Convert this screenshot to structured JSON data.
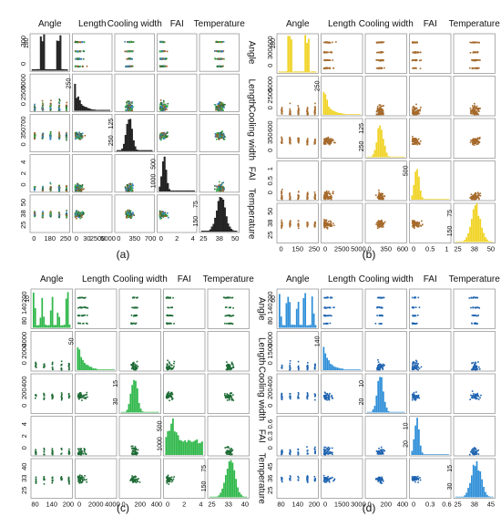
{
  "panels_caption": [
    "(a)",
    "(b)",
    "(c)",
    "(d)"
  ],
  "variables": [
    "Angle",
    "Length",
    "Cooling width",
    "FAI",
    "Temperature"
  ],
  "colors": {
    "a_series": [
      "#2d6b34",
      "#3b7fc0",
      "#39b34a",
      "#a0612b"
    ],
    "a_hist": "#2b2b2b",
    "b_scatter": "#a66a2c",
    "b_hist": "#f0d324",
    "c_scatter": "#1d6b35",
    "c_hist": "#2fb74a",
    "d_scatter": "#1f63b0",
    "d_hist": "#2f8fd8"
  },
  "chart_data": [
    {
      "type": "scatter",
      "panel": "(a)",
      "variables": [
        "Angle",
        "Length",
        "Cooling width",
        "FAI",
        "Temperature"
      ],
      "diagonal": "histogram",
      "x_tick_labels": [
        [
          "0",
          "180",
          "250"
        ],
        [
          "0",
          "30",
          "2500",
          "5000"
        ],
        [
          "0",
          "350",
          "700"
        ],
        [
          "0",
          "2",
          "4"
        ],
        [
          "25",
          "38",
          "50"
        ]
      ],
      "y_tick_labels": [
        [
          "0",
          "300"
        ],
        [
          "0",
          "2500",
          "5000"
        ],
        [
          "0",
          "350",
          "700"
        ],
        [
          "0",
          "2",
          "4"
        ],
        [
          "25",
          "38",
          "50"
        ]
      ],
      "diag_tick_labels": [
        [
          "180"
        ],
        [
          "250"
        ],
        [
          "125",
          "250"
        ],
        [
          "500",
          "1000"
        ],
        [
          "75",
          "150"
        ]
      ],
      "ranges": [
        [
          0,
          300
        ],
        [
          0,
          5000
        ],
        [
          0,
          700
        ],
        [
          0,
          4
        ],
        [
          25,
          50
        ]
      ]
    },
    {
      "type": "scatter",
      "panel": "(b)",
      "variables": [
        "Angle",
        "Length",
        "Cooling width",
        "FAI",
        "Temperature"
      ],
      "diagonal": "histogram",
      "x_tick_labels": [
        [
          "0",
          "150",
          "250"
        ],
        [
          "0",
          "2500",
          "5000"
        ],
        [
          "0",
          "350",
          "600"
        ],
        [
          "0",
          "0.5",
          "1"
        ],
        [
          "25",
          "38",
          "50"
        ]
      ],
      "y_tick_labels": [
        [
          "0",
          "300",
          "600"
        ],
        [
          "0",
          "2500",
          "5000"
        ],
        [
          "0",
          "350",
          "600"
        ],
        [
          "0",
          "0.5",
          "1"
        ],
        [
          "25",
          "38",
          "50"
        ]
      ],
      "diag_tick_labels": [
        [
          "180"
        ],
        [
          "250"
        ],
        [
          "125",
          "250"
        ],
        [
          "500"
        ],
        [
          "75",
          "150"
        ]
      ],
      "ranges": [
        [
          0,
          300
        ],
        [
          0,
          5000
        ],
        [
          0,
          600
        ],
        [
          0,
          1
        ],
        [
          25,
          50
        ]
      ]
    },
    {
      "type": "scatter",
      "panel": "(c)",
      "variables": [
        "Angle",
        "Length",
        "Cooling width",
        "FAI",
        "Temperature"
      ],
      "diagonal": "histogram",
      "x_tick_labels": [
        [
          "80",
          "140",
          "200"
        ],
        [
          "0",
          "2000",
          "4000"
        ],
        [
          "0",
          "200",
          "400"
        ],
        [
          "0",
          "2",
          "4"
        ],
        [
          "25",
          "33",
          "40"
        ]
      ],
      "y_tick_labels": [
        [
          "80",
          "140",
          "200"
        ],
        [
          "0",
          "2000",
          "4000"
        ],
        [
          "0",
          "200",
          "400"
        ],
        [
          "0",
          "2",
          "4"
        ],
        [
          "25",
          "33",
          "40"
        ]
      ],
      "diag_tick_labels": [
        [
          "10"
        ],
        [
          "50"
        ],
        [
          "15",
          "30"
        ],
        [
          "500",
          "1000"
        ],
        [
          "75",
          "150"
        ]
      ],
      "ranges": [
        [
          80,
          200
        ],
        [
          0,
          4000
        ],
        [
          0,
          400
        ],
        [
          0,
          4
        ],
        [
          25,
          40
        ]
      ]
    },
    {
      "type": "scatter",
      "panel": "(d)",
      "variables": [
        "Angle",
        "Length",
        "Cooling width",
        "FAI",
        "Temperature"
      ],
      "diagonal": "histogram",
      "x_tick_labels": [
        [
          "80",
          "140",
          "200"
        ],
        [
          "0",
          "1500",
          "3000"
        ],
        [
          "0",
          "200",
          "400"
        ],
        [
          "0",
          "0.3",
          "0.6"
        ],
        [
          "25",
          "38",
          "45"
        ]
      ],
      "y_tick_labels": [
        [
          "80",
          "140",
          "200"
        ],
        [
          "0",
          "1500",
          "3000"
        ],
        [
          "0",
          "200",
          "400"
        ],
        [
          "0",
          "0.3",
          "0.6"
        ],
        [
          "25",
          "36",
          "45"
        ]
      ],
      "diag_tick_labels": [
        [
          "60"
        ],
        [
          "140"
        ],
        [
          "10",
          "20"
        ],
        [
          "10",
          "20"
        ],
        [
          "15",
          "30"
        ]
      ],
      "ranges": [
        [
          80,
          200
        ],
        [
          0,
          3000
        ],
        [
          0,
          400
        ],
        [
          0,
          0.6
        ],
        [
          25,
          45
        ]
      ]
    }
  ]
}
